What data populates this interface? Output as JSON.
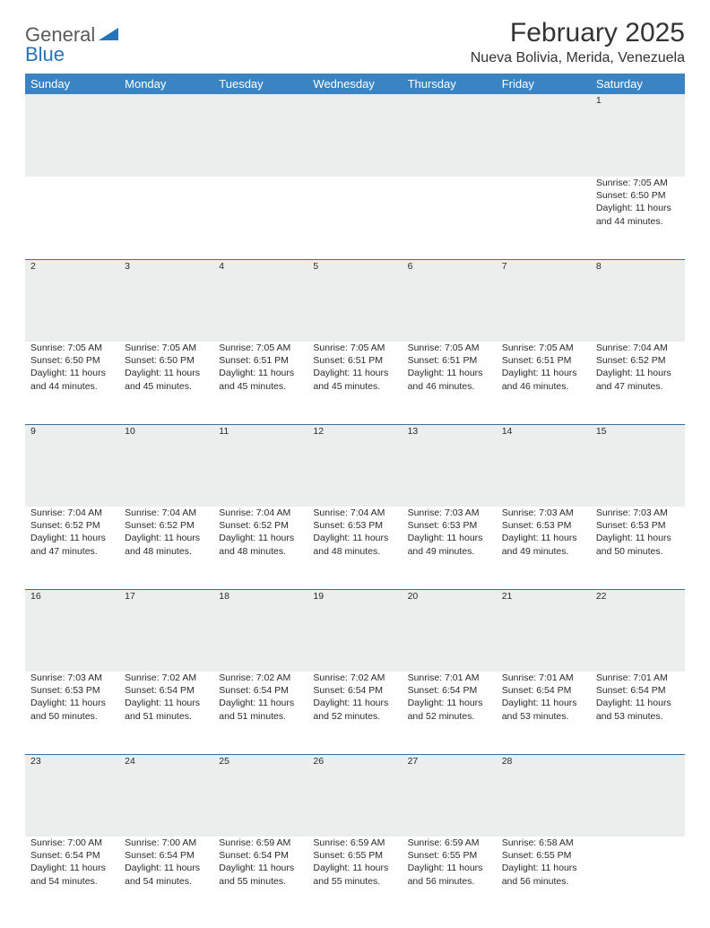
{
  "brand": {
    "part1": "General",
    "part2": "Blue"
  },
  "title": "February 2025",
  "location": "Nueva Bolivia, Merida, Venezuela",
  "colors": {
    "header_bg": "#3b84c4",
    "header_text": "#ffffff",
    "daynum_bg": "#eceded",
    "rule": "#3b6fa0",
    "text": "#2a2a2a",
    "brand_gray": "#5a5a5a",
    "brand_blue": "#2872b8",
    "page_bg": "#ffffff"
  },
  "weekdays": [
    "Sunday",
    "Monday",
    "Tuesday",
    "Wednesday",
    "Thursday",
    "Friday",
    "Saturday"
  ],
  "weeks": [
    {
      "nums": [
        "",
        "",
        "",
        "",
        "",
        "",
        "1"
      ],
      "cells": [
        null,
        null,
        null,
        null,
        null,
        null,
        {
          "sunrise": "Sunrise: 7:05 AM",
          "sunset": "Sunset: 6:50 PM",
          "day1": "Daylight: 11 hours",
          "day2": "and 44 minutes."
        }
      ]
    },
    {
      "nums": [
        "2",
        "3",
        "4",
        "5",
        "6",
        "7",
        "8"
      ],
      "cells": [
        {
          "sunrise": "Sunrise: 7:05 AM",
          "sunset": "Sunset: 6:50 PM",
          "day1": "Daylight: 11 hours",
          "day2": "and 44 minutes."
        },
        {
          "sunrise": "Sunrise: 7:05 AM",
          "sunset": "Sunset: 6:50 PM",
          "day1": "Daylight: 11 hours",
          "day2": "and 45 minutes."
        },
        {
          "sunrise": "Sunrise: 7:05 AM",
          "sunset": "Sunset: 6:51 PM",
          "day1": "Daylight: 11 hours",
          "day2": "and 45 minutes."
        },
        {
          "sunrise": "Sunrise: 7:05 AM",
          "sunset": "Sunset: 6:51 PM",
          "day1": "Daylight: 11 hours",
          "day2": "and 45 minutes."
        },
        {
          "sunrise": "Sunrise: 7:05 AM",
          "sunset": "Sunset: 6:51 PM",
          "day1": "Daylight: 11 hours",
          "day2": "and 46 minutes."
        },
        {
          "sunrise": "Sunrise: 7:05 AM",
          "sunset": "Sunset: 6:51 PM",
          "day1": "Daylight: 11 hours",
          "day2": "and 46 minutes."
        },
        {
          "sunrise": "Sunrise: 7:04 AM",
          "sunset": "Sunset: 6:52 PM",
          "day1": "Daylight: 11 hours",
          "day2": "and 47 minutes."
        }
      ]
    },
    {
      "nums": [
        "9",
        "10",
        "11",
        "12",
        "13",
        "14",
        "15"
      ],
      "cells": [
        {
          "sunrise": "Sunrise: 7:04 AM",
          "sunset": "Sunset: 6:52 PM",
          "day1": "Daylight: 11 hours",
          "day2": "and 47 minutes."
        },
        {
          "sunrise": "Sunrise: 7:04 AM",
          "sunset": "Sunset: 6:52 PM",
          "day1": "Daylight: 11 hours",
          "day2": "and 48 minutes."
        },
        {
          "sunrise": "Sunrise: 7:04 AM",
          "sunset": "Sunset: 6:52 PM",
          "day1": "Daylight: 11 hours",
          "day2": "and 48 minutes."
        },
        {
          "sunrise": "Sunrise: 7:04 AM",
          "sunset": "Sunset: 6:53 PM",
          "day1": "Daylight: 11 hours",
          "day2": "and 48 minutes."
        },
        {
          "sunrise": "Sunrise: 7:03 AM",
          "sunset": "Sunset: 6:53 PM",
          "day1": "Daylight: 11 hours",
          "day2": "and 49 minutes."
        },
        {
          "sunrise": "Sunrise: 7:03 AM",
          "sunset": "Sunset: 6:53 PM",
          "day1": "Daylight: 11 hours",
          "day2": "and 49 minutes."
        },
        {
          "sunrise": "Sunrise: 7:03 AM",
          "sunset": "Sunset: 6:53 PM",
          "day1": "Daylight: 11 hours",
          "day2": "and 50 minutes."
        }
      ]
    },
    {
      "nums": [
        "16",
        "17",
        "18",
        "19",
        "20",
        "21",
        "22"
      ],
      "cells": [
        {
          "sunrise": "Sunrise: 7:03 AM",
          "sunset": "Sunset: 6:53 PM",
          "day1": "Daylight: 11 hours",
          "day2": "and 50 minutes."
        },
        {
          "sunrise": "Sunrise: 7:02 AM",
          "sunset": "Sunset: 6:54 PM",
          "day1": "Daylight: 11 hours",
          "day2": "and 51 minutes."
        },
        {
          "sunrise": "Sunrise: 7:02 AM",
          "sunset": "Sunset: 6:54 PM",
          "day1": "Daylight: 11 hours",
          "day2": "and 51 minutes."
        },
        {
          "sunrise": "Sunrise: 7:02 AM",
          "sunset": "Sunset: 6:54 PM",
          "day1": "Daylight: 11 hours",
          "day2": "and 52 minutes."
        },
        {
          "sunrise": "Sunrise: 7:01 AM",
          "sunset": "Sunset: 6:54 PM",
          "day1": "Daylight: 11 hours",
          "day2": "and 52 minutes."
        },
        {
          "sunrise": "Sunrise: 7:01 AM",
          "sunset": "Sunset: 6:54 PM",
          "day1": "Daylight: 11 hours",
          "day2": "and 53 minutes."
        },
        {
          "sunrise": "Sunrise: 7:01 AM",
          "sunset": "Sunset: 6:54 PM",
          "day1": "Daylight: 11 hours",
          "day2": "and 53 minutes."
        }
      ]
    },
    {
      "nums": [
        "23",
        "24",
        "25",
        "26",
        "27",
        "28",
        ""
      ],
      "cells": [
        {
          "sunrise": "Sunrise: 7:00 AM",
          "sunset": "Sunset: 6:54 PM",
          "day1": "Daylight: 11 hours",
          "day2": "and 54 minutes."
        },
        {
          "sunrise": "Sunrise: 7:00 AM",
          "sunset": "Sunset: 6:54 PM",
          "day1": "Daylight: 11 hours",
          "day2": "and 54 minutes."
        },
        {
          "sunrise": "Sunrise: 6:59 AM",
          "sunset": "Sunset: 6:54 PM",
          "day1": "Daylight: 11 hours",
          "day2": "and 55 minutes."
        },
        {
          "sunrise": "Sunrise: 6:59 AM",
          "sunset": "Sunset: 6:55 PM",
          "day1": "Daylight: 11 hours",
          "day2": "and 55 minutes."
        },
        {
          "sunrise": "Sunrise: 6:59 AM",
          "sunset": "Sunset: 6:55 PM",
          "day1": "Daylight: 11 hours",
          "day2": "and 56 minutes."
        },
        {
          "sunrise": "Sunrise: 6:58 AM",
          "sunset": "Sunset: 6:55 PM",
          "day1": "Daylight: 11 hours",
          "day2": "and 56 minutes."
        },
        null
      ]
    }
  ]
}
